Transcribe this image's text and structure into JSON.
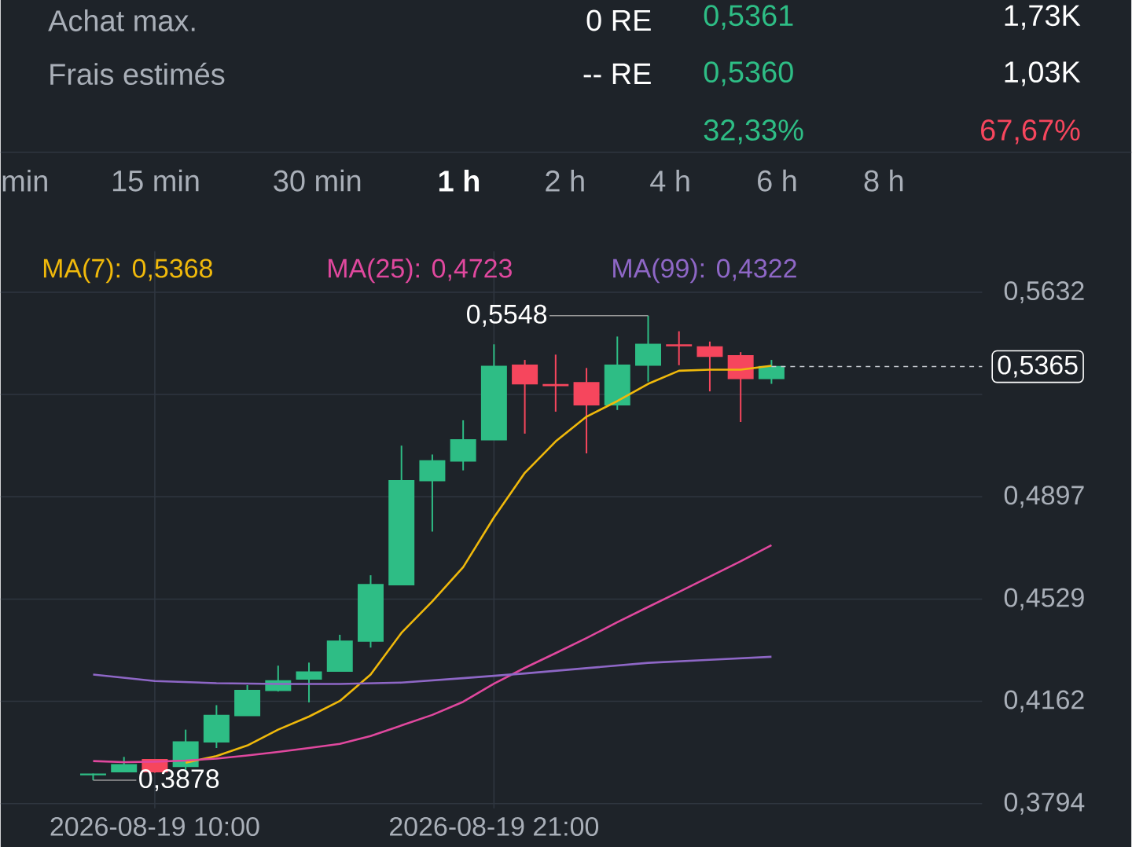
{
  "chart_data": {
    "type": "candlestick",
    "annotations": [
      "Achat max.",
      "0 RE",
      "Frais estimés",
      "-- RE",
      "0,5361",
      "1,73K",
      "0,5360",
      "1,03K",
      "32,33%",
      "67,67%",
      "min",
      "15 min",
      "30 min",
      "1 h",
      "2 h",
      "4 h",
      "6 h",
      "8 h",
      {
        "text": "0,5548",
        "x": "2026-08-20T02:00",
        "y": 0.5548
      },
      {
        "text": "0,3878",
        "x": "2026-08-19T08:00",
        "y": 0.3878
      }
    ],
    "x": [
      "2026-08-19T08:00",
      "2026-08-19T09:00",
      "2026-08-19T10:00",
      "2026-08-19T11:00",
      "2026-08-19T12:00",
      "2026-08-19T13:00",
      "2026-08-19T14:00",
      "2026-08-19T15:00",
      "2026-08-19T16:00",
      "2026-08-19T17:00",
      "2026-08-19T18:00",
      "2026-08-19T19:00",
      "2026-08-19T20:00",
      "2026-08-19T21:00",
      "2026-08-19T22:00",
      "2026-08-19T23:00",
      "2026-08-20T00:00",
      "2026-08-20T01:00",
      "2026-08-20T02:00",
      "2026-08-20T03:00",
      "2026-08-20T04:00",
      "2026-08-20T05:00",
      "2026-08-20T06:00"
    ],
    "ohlc": [
      [
        0.3898,
        0.3902,
        0.3878,
        0.39
      ],
      [
        0.3909,
        0.3962,
        0.3909,
        0.3934
      ],
      [
        0.3952,
        0.3952,
        0.3905,
        0.3909
      ],
      [
        0.3928,
        0.406,
        0.3909,
        0.4016
      ],
      [
        0.4016,
        0.4148,
        0.3994,
        0.4111
      ],
      [
        0.4111,
        0.422,
        0.4111,
        0.4201
      ],
      [
        0.4201,
        0.429,
        0.4197,
        0.4235
      ],
      [
        0.4242,
        0.4301,
        0.4158,
        0.4267
      ],
      [
        0.427,
        0.4401,
        0.427,
        0.4378
      ],
      [
        0.4378,
        0.4615,
        0.4355,
        0.4581
      ],
      [
        0.4581,
        0.5081,
        0.4581,
        0.4955
      ],
      [
        0.4955,
        0.5049,
        0.4772,
        0.5026
      ],
      [
        0.5026,
        0.5172,
        0.4992,
        0.5102
      ],
      [
        0.5102,
        0.5445,
        0.5102,
        0.5366
      ],
      [
        0.537,
        0.5389,
        0.5124,
        0.5303
      ],
      [
        0.53,
        0.5408,
        0.5203,
        0.5297
      ],
      [
        0.5307,
        0.536,
        0.5053,
        0.5228
      ],
      [
        0.5228,
        0.5473,
        0.5209,
        0.537
      ],
      [
        0.537,
        0.5548,
        0.5311,
        0.5445
      ],
      [
        0.5443,
        0.5492,
        0.537,
        0.544
      ],
      [
        0.5436,
        0.5455,
        0.5276,
        0.5402
      ],
      [
        0.5404,
        0.5417,
        0.5166,
        0.5322
      ],
      [
        0.5322,
        0.5389,
        0.5303,
        0.5365
      ]
    ],
    "colors": [
      "#2ebd85",
      "#2ebd85",
      "#f6465d",
      "#2ebd85",
      "#2ebd85",
      "#2ebd85",
      "#2ebd85",
      "#2ebd85",
      "#2ebd85",
      "#2ebd85",
      "#2ebd85",
      "#2ebd85",
      "#2ebd85",
      "#2ebd85",
      "#f6465d",
      "#f6465d",
      "#f6465d",
      "#2ebd85",
      "#2ebd85",
      "#f6465d",
      "#f6465d",
      "#f6465d",
      "#2ebd85"
    ],
    "series": [
      {
        "name": "MA(7): 0,5368",
        "type": "line",
        "color": "#f0b90b",
        "x": [
          "2026-08-19T11:00",
          "2026-08-19T12:00",
          "2026-08-19T13:00",
          "2026-08-19T14:00",
          "2026-08-19T15:00",
          "2026-08-19T16:00",
          "2026-08-19T17:00",
          "2026-08-19T18:00",
          "2026-08-19T19:00",
          "2026-08-19T20:00",
          "2026-08-19T21:00",
          "2026-08-19T22:00",
          "2026-08-19T23:00",
          "2026-08-20T00:00",
          "2026-08-20T01:00",
          "2026-08-20T02:00",
          "2026-08-20T03:00",
          "2026-08-20T04:00",
          "2026-08-20T05:00",
          "2026-08-20T06:00"
        ],
        "values": [
          0.3941,
          0.3965,
          0.4003,
          0.406,
          0.4107,
          0.4163,
          0.4258,
          0.4408,
          0.4521,
          0.4644,
          0.4823,
          0.4983,
          0.5096,
          0.5185,
          0.5241,
          0.5303,
          0.535,
          0.5354,
          0.5354,
          0.5368
        ]
      },
      {
        "name": "MA(25): 0,4723",
        "type": "line",
        "color": "#e0489e",
        "x": [
          "2026-08-19T08:00",
          "2026-08-19T09:00",
          "2026-08-19T10:00",
          "2026-08-19T11:00",
          "2026-08-19T12:00",
          "2026-08-19T13:00",
          "2026-08-19T14:00",
          "2026-08-19T15:00",
          "2026-08-19T16:00",
          "2026-08-19T17:00",
          "2026-08-19T18:00",
          "2026-08-19T19:00",
          "2026-08-19T20:00",
          "2026-08-19T21:00",
          "2026-08-19T22:00",
          "2026-08-19T23:00",
          "2026-08-20T00:00",
          "2026-08-20T01:00",
          "2026-08-20T02:00",
          "2026-08-20T03:00",
          "2026-08-20T04:00",
          "2026-08-20T05:00",
          "2026-08-20T06:00"
        ],
        "values": [
          0.3947,
          0.3943,
          0.3945,
          0.3949,
          0.3956,
          0.3967,
          0.398,
          0.3994,
          0.4009,
          0.4037,
          0.4075,
          0.4113,
          0.416,
          0.4225,
          0.4282,
          0.4335,
          0.4389,
          0.4446,
          0.4501,
          0.4555,
          0.461,
          0.4665,
          0.4723
        ]
      },
      {
        "name": "MA(99): 0,4322",
        "type": "line",
        "color": "#8e67c6",
        "x": [
          "2026-08-19T08:00",
          "2026-08-19T10:00",
          "2026-08-19T12:00",
          "2026-08-19T14:00",
          "2026-08-19T16:00",
          "2026-08-19T18:00",
          "2026-08-19T20:00",
          "2026-08-19T22:00",
          "2026-08-20T00:00",
          "2026-08-20T02:00",
          "2026-08-20T04:00",
          "2026-08-20T06:00"
        ],
        "values": [
          0.4258,
          0.4235,
          0.4227,
          0.4224,
          0.4224,
          0.4229,
          0.4245,
          0.4262,
          0.4281,
          0.43,
          0.4311,
          0.4322
        ]
      }
    ],
    "xlim": [
      "2026-08-19T05:00",
      "2026-08-20T12:50"
    ],
    "xticks": [
      {
        "value": "2026-08-19T10:00",
        "label": "2026-08-19 10:00"
      },
      {
        "value": "2026-08-19T21:00",
        "label": "2026-08-19 21:00"
      }
    ],
    "ylim": [
      0.3777,
      0.578
    ],
    "yticks": [
      {
        "value": 0.3794,
        "label": "0,3794"
      },
      {
        "value": 0.4162,
        "label": "0,4162"
      },
      {
        "value": 0.4529,
        "label": "0,4529"
      },
      {
        "value": 0.4897,
        "label": "0,4897"
      },
      {
        "value": 0.5265,
        "label": null
      },
      {
        "value": 0.5632,
        "label": "0,5632"
      }
    ],
    "ref_lines": [
      {
        "axis": "y",
        "value": 0.5365,
        "label": "0,5365",
        "line_style": "dashed",
        "color": "#c8ccd2"
      }
    ],
    "grid": true,
    "legend": "top"
  }
}
